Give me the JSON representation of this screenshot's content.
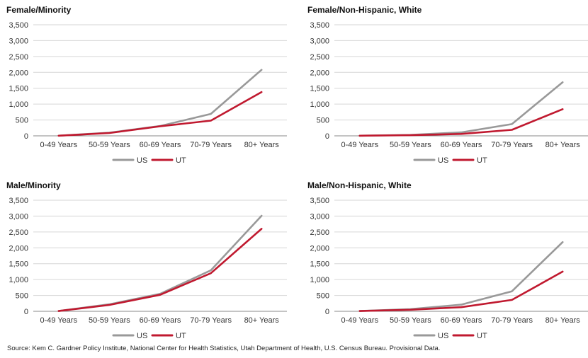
{
  "chart_data": [
    {
      "type": "line",
      "title": "Female/Minority",
      "categories": [
        "0-49 Years",
        "50-59 Years",
        "60-69 Years",
        "70-79 Years",
        "80+ Years"
      ],
      "series": [
        {
          "name": "US",
          "color": "#999999",
          "values": [
            5,
            100,
            310,
            690,
            2080
          ]
        },
        {
          "name": "UT",
          "color": "#c0192f",
          "values": [
            5,
            90,
            300,
            480,
            1380
          ]
        }
      ],
      "ylim": [
        0,
        3500
      ],
      "yticks": [
        "0",
        "500",
        "1,000",
        "1,500",
        "2,000",
        "2,500",
        "3,000",
        "3,500"
      ],
      "grid": true,
      "legend": "bottom-center"
    },
    {
      "type": "line",
      "title": "Female/Non-Hispanic, White",
      "categories": [
        "0-49 Years",
        "50-59 Years",
        "60-69 Years",
        "70-79 Years",
        "80+ Years"
      ],
      "series": [
        {
          "name": "US",
          "color": "#999999",
          "values": [
            5,
            30,
            110,
            370,
            1690
          ]
        },
        {
          "name": "UT",
          "color": "#c0192f",
          "values": [
            5,
            20,
            60,
            190,
            840
          ]
        }
      ],
      "ylim": [
        0,
        3500
      ],
      "yticks": [
        "0",
        "500",
        "1,000",
        "1,500",
        "2,000",
        "2,500",
        "3,000",
        "3,500"
      ],
      "grid": true,
      "legend": "bottom-center"
    },
    {
      "type": "line",
      "title": "Male/Minority",
      "categories": [
        "0-49 Years",
        "50-59 Years",
        "60-69 Years",
        "70-79 Years",
        "80+ Years"
      ],
      "series": [
        {
          "name": "US",
          "color": "#999999",
          "values": [
            10,
            220,
            550,
            1290,
            3010
          ]
        },
        {
          "name": "UT",
          "color": "#c0192f",
          "values": [
            10,
            200,
            520,
            1200,
            2600
          ]
        }
      ],
      "ylim": [
        0,
        3500
      ],
      "yticks": [
        "0",
        "500",
        "1,000",
        "1,500",
        "2,000",
        "2,500",
        "3,000",
        "3,500"
      ],
      "grid": true,
      "legend": "bottom-center"
    },
    {
      "type": "line",
      "title": "Male/Non-Hispanic, White",
      "categories": [
        "0-49 Years",
        "50-59 Years",
        "60-69 Years",
        "70-79 Years",
        "80+ Years"
      ],
      "series": [
        {
          "name": "US",
          "color": "#999999",
          "values": [
            10,
            70,
            210,
            630,
            2180
          ]
        },
        {
          "name": "UT",
          "color": "#c0192f",
          "values": [
            10,
            50,
            130,
            360,
            1250
          ]
        }
      ],
      "ylim": [
        0,
        3500
      ],
      "yticks": [
        "0",
        "500",
        "1,000",
        "1,500",
        "2,000",
        "2,500",
        "3,000",
        "3,500"
      ],
      "grid": true,
      "legend": "bottom-center"
    }
  ],
  "source": "Source: Kem C. Gardner Policy Institute, National Center for Health Statistics, Utah Department of Health, U.S. Census Bureau. Provisional Data."
}
